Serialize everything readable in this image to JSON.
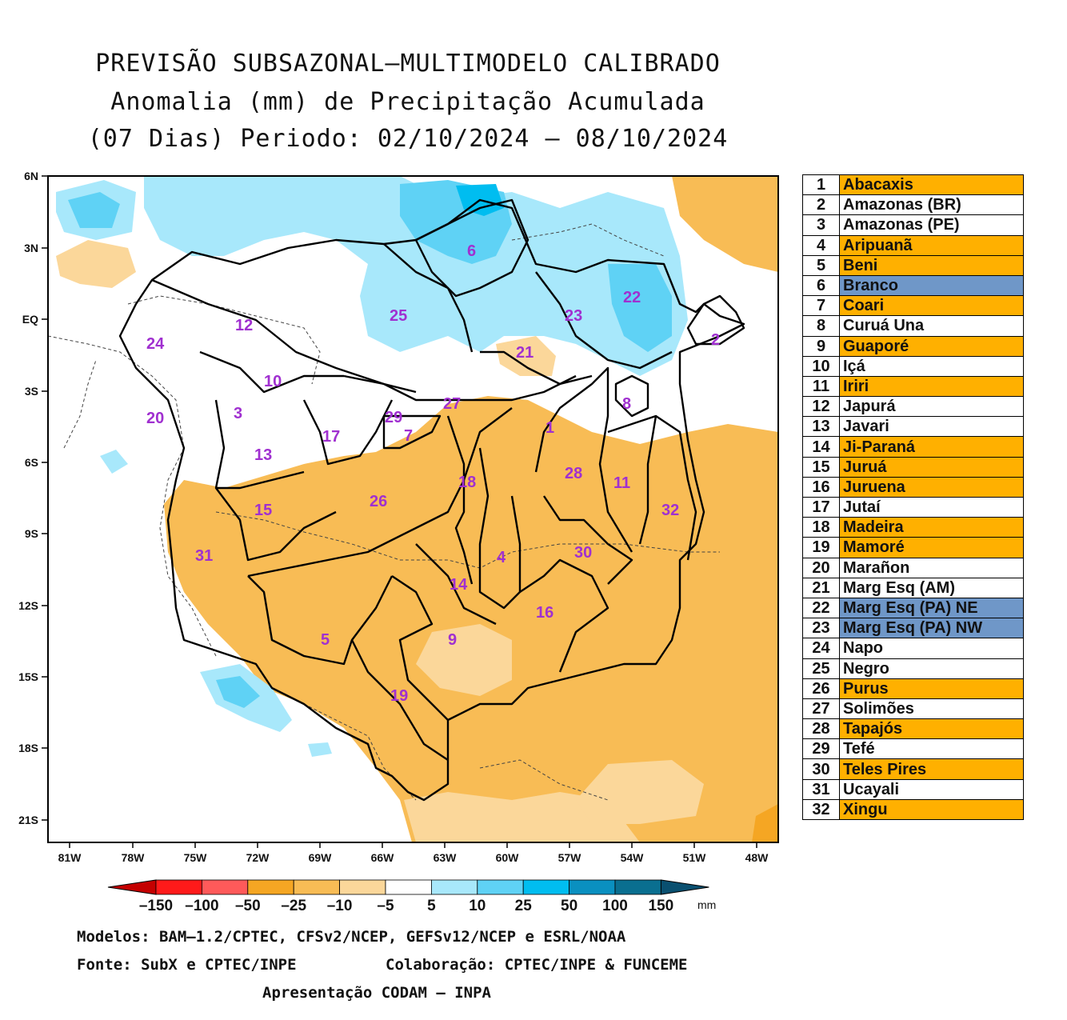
{
  "title": {
    "line1": "PREVISÃO SUBSAZONAL–MULTIMODELO CALIBRADO",
    "line2": "Anomalia (mm) de Precipitação Acumulada",
    "line3": "(07 Dias) Periodo: 02/10/2024 – 08/10/2024"
  },
  "map": {
    "lat_ticks": [
      "6N",
      "3N",
      "EQ",
      "3S",
      "6S",
      "9S",
      "12S",
      "15S",
      "18S",
      "21S"
    ],
    "lon_ticks": [
      "81W",
      "78W",
      "75W",
      "72W",
      "69W",
      "66W",
      "63W",
      "60W",
      "57W",
      "54W",
      "51W",
      "48W"
    ],
    "basin_labels": [
      "1",
      "2",
      "3",
      "4",
      "5",
      "6",
      "7",
      "8",
      "9",
      "10",
      "11",
      "12",
      "13",
      "14",
      "15",
      "16",
      "17",
      "18",
      "19",
      "20",
      "21",
      "22",
      "23",
      "24",
      "25",
      "26",
      "27",
      "28",
      "29",
      "30",
      "31",
      "32"
    ]
  },
  "basins_legend": [
    {
      "num": "1",
      "name": "Abacaxis",
      "color": "#ffb000"
    },
    {
      "num": "2",
      "name": "Amazonas (BR)",
      "color": "#ffffff"
    },
    {
      "num": "3",
      "name": "Amazonas (PE)",
      "color": "#ffffff"
    },
    {
      "num": "4",
      "name": "Aripuanã",
      "color": "#ffb000"
    },
    {
      "num": "5",
      "name": "Beni",
      "color": "#ffb000"
    },
    {
      "num": "6",
      "name": "Branco",
      "color": "#6f97c8"
    },
    {
      "num": "7",
      "name": "Coari",
      "color": "#ffb000"
    },
    {
      "num": "8",
      "name": "Curuá Una",
      "color": "#ffffff"
    },
    {
      "num": "9",
      "name": "Guaporé",
      "color": "#ffb000"
    },
    {
      "num": "10",
      "name": "Içá",
      "color": "#ffffff"
    },
    {
      "num": "11",
      "name": "Iriri",
      "color": "#ffb000"
    },
    {
      "num": "12",
      "name": "Japurá",
      "color": "#ffffff"
    },
    {
      "num": "13",
      "name": "Javari",
      "color": "#ffffff"
    },
    {
      "num": "14",
      "name": "Ji-Paraná",
      "color": "#ffb000"
    },
    {
      "num": "15",
      "name": "Juruá",
      "color": "#ffb000"
    },
    {
      "num": "16",
      "name": "Juruena",
      "color": "#ffb000"
    },
    {
      "num": "17",
      "name": "Jutaí",
      "color": "#ffffff"
    },
    {
      "num": "18",
      "name": "Madeira",
      "color": "#ffb000"
    },
    {
      "num": "19",
      "name": "Mamoré",
      "color": "#ffb000"
    },
    {
      "num": "20",
      "name": "Marañon",
      "color": "#ffffff"
    },
    {
      "num": "21",
      "name": "Marg Esq (AM)",
      "color": "#ffffff"
    },
    {
      "num": "22",
      "name": "Marg Esq (PA) NE",
      "color": "#6f97c8"
    },
    {
      "num": "23",
      "name": "Marg Esq (PA) NW",
      "color": "#6f97c8"
    },
    {
      "num": "24",
      "name": "Napo",
      "color": "#ffffff"
    },
    {
      "num": "25",
      "name": "Negro",
      "color": "#ffffff"
    },
    {
      "num": "26",
      "name": "Purus",
      "color": "#ffb000"
    },
    {
      "num": "27",
      "name": "Solimões",
      "color": "#ffffff"
    },
    {
      "num": "28",
      "name": "Tapajós",
      "color": "#ffb000"
    },
    {
      "num": "29",
      "name": "Tefé",
      "color": "#ffffff"
    },
    {
      "num": "30",
      "name": "Teles Pires",
      "color": "#ffb000"
    },
    {
      "num": "31",
      "name": "Ucayali",
      "color": "#ffffff"
    },
    {
      "num": "32",
      "name": "Xingu",
      "color": "#ffb000"
    }
  ],
  "colorbar": {
    "labels": [
      "–150",
      "–100",
      "–50",
      "–25",
      "–10",
      "–5",
      "5",
      "10",
      "25",
      "50",
      "100",
      "150"
    ],
    "unit": "mm",
    "colors": [
      "#c40000",
      "#ff1a1a",
      "#ff5a5a",
      "#f5a623",
      "#f8bc55",
      "#fbd79a",
      "#ffffff",
      "#a8e8fb",
      "#5fd2f5",
      "#00bdf0",
      "#0a90c0",
      "#0a6f90",
      "#0a5070"
    ]
  },
  "footer": {
    "models": "Modelos: BAM–1.2/CPTEC, CFSv2/NCEP, GEFSv12/NCEP e ESRL/NOAA",
    "source": "Fonte: SubX e CPTEC/INPE",
    "collab": "Colaboração: CPTEC/INPE & FUNCEME",
    "presentation": "Apresentação CODAM – INPA"
  }
}
